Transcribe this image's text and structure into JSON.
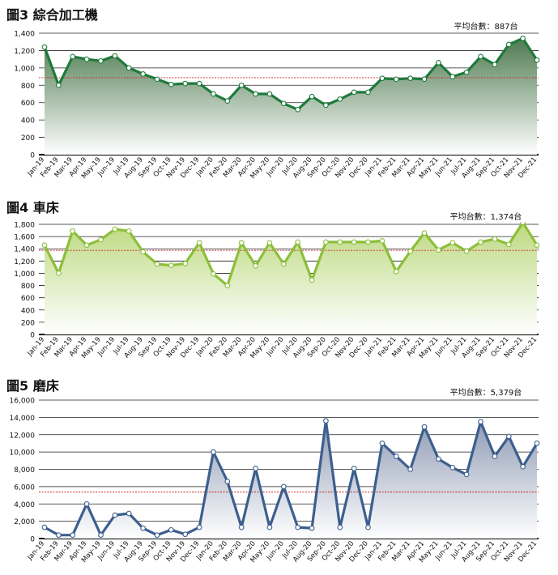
{
  "chart_data": [
    {
      "type": "area",
      "title": "圖3 綜合加工機",
      "annotation": "平均台數：887台",
      "average": 887,
      "ylim": [
        0,
        1400
      ],
      "yticks": [
        "0",
        "200",
        "400",
        "600",
        "800",
        "1,000",
        "1,200",
        "1,400"
      ],
      "grid": true,
      "colors": {
        "line": "#1e7a3c",
        "fill_top": "#4e7a50",
        "fill_bottom": "#ffffff",
        "avg_line": "#cc2222"
      },
      "categories": [
        "Jan-19",
        "Feb-19",
        "Mar-19",
        "Apr-19",
        "May-19",
        "Jun-19",
        "Jul-19",
        "Aug-19",
        "Sep-19",
        "Oct-19",
        "Nov-19",
        "Dec-19",
        "Jan-20",
        "Feb-20",
        "Mar-20",
        "Apr-20",
        "May-20",
        "Jun-20",
        "Jul-20",
        "Aug-20",
        "Sep-20",
        "Oct-20",
        "Nov-20",
        "Dec-20",
        "Jan-21",
        "Feb-21",
        "Mar-21",
        "Apr-21",
        "May-21",
        "Jun-21",
        "Jul-21",
        "Aug-21",
        "Sep-21",
        "Oct-21",
        "Nov-21",
        "Dec-21"
      ],
      "values": [
        1240,
        800,
        1130,
        1100,
        1080,
        1140,
        1000,
        930,
        870,
        810,
        820,
        820,
        700,
        620,
        800,
        700,
        700,
        590,
        520,
        670,
        570,
        640,
        720,
        720,
        880,
        870,
        880,
        870,
        1060,
        900,
        950,
        1130,
        1040,
        1270,
        1340,
        1090
      ]
    },
    {
      "type": "area",
      "title": "圖4 車床",
      "annotation": "平均台數：1,374台",
      "average": 1374,
      "ylim": [
        0,
        1800
      ],
      "yticks": [
        "0",
        "200",
        "400",
        "600",
        "800",
        "1,000",
        "1,200",
        "1,400",
        "1,600",
        "1,800"
      ],
      "grid": true,
      "colors": {
        "line": "#8cbf3a",
        "fill_top": "#bcd97f",
        "fill_bottom": "#ffffff",
        "avg_line": "#cc2222"
      },
      "categories": [
        "Jan-19",
        "Feb-19",
        "Mar-19",
        "Apr-19",
        "May-19",
        "Jun-19",
        "Jul-19",
        "Aug-19",
        "Sep-19",
        "Oct-19",
        "Nov-19",
        "Dec-19",
        "Jan-20",
        "Feb-20",
        "Mar-20",
        "Apr-20",
        "May-20",
        "Jun-20",
        "Jul-20",
        "Aug-20",
        "Sep-20",
        "Oct-20",
        "Nov-20",
        "Dec-20",
        "Jan-21",
        "Feb-21",
        "Mar-21",
        "Apr-21",
        "May-21",
        "Jun-21",
        "Jul-21",
        "Aug-21",
        "Sep-21",
        "Oct-21",
        "Nov-21",
        "Dec-21"
      ],
      "values": [
        1460,
        1000,
        1690,
        1460,
        1550,
        1720,
        1690,
        1350,
        1150,
        1130,
        1160,
        1500,
        990,
        800,
        1500,
        1120,
        1500,
        1150,
        1510,
        890,
        1510,
        1510,
        1510,
        1510,
        1530,
        1030,
        1360,
        1660,
        1380,
        1500,
        1360,
        1510,
        1560,
        1470,
        1830,
        1460
      ]
    },
    {
      "type": "area",
      "title": "圖5 磨床",
      "annotation": "平均台數：5,379台",
      "average": 5379,
      "ylim": [
        0,
        16000
      ],
      "yticks": [
        "0",
        "2,000",
        "4,000",
        "6,000",
        "8,000",
        "10,000",
        "12,000",
        "14,000",
        "16,000"
      ],
      "grid": true,
      "colors": {
        "line": "#3c5f8e",
        "fill_top": "#8f9bb4",
        "fill_bottom": "#ffffff",
        "avg_line": "#cc2222"
      },
      "categories": [
        "Jan-19",
        "Feb-19",
        "Mar-19",
        "Apr-19",
        "May-19",
        "Jun-19",
        "Jul-19",
        "Aug-19",
        "Sep-19",
        "Oct-19",
        "Nov-19",
        "Dec-19",
        "Jan-20",
        "Feb-20",
        "Mar-20",
        "Apr-20",
        "May-20",
        "Jun-20",
        "Jul-20",
        "Aug-20",
        "Sep-20",
        "Oct-20",
        "Nov-20",
        "Dec-20",
        "Jan-21",
        "Feb-21",
        "Mar-21",
        "Apr-21",
        "May-21",
        "Jun-21",
        "Jul-21",
        "Aug-21",
        "Sep-21",
        "Oct-21",
        "Nov-21",
        "Dec-21"
      ],
      "values": [
        1300,
        400,
        400,
        4000,
        400,
        2700,
        2900,
        1200,
        400,
        1000,
        500,
        1300,
        10000,
        6600,
        1300,
        8100,
        1300,
        6000,
        1300,
        1200,
        13600,
        1300,
        8100,
        1300,
        11000,
        9500,
        8000,
        12900,
        9200,
        8200,
        7400,
        13500,
        9500,
        11800,
        8300,
        11000
      ]
    }
  ]
}
